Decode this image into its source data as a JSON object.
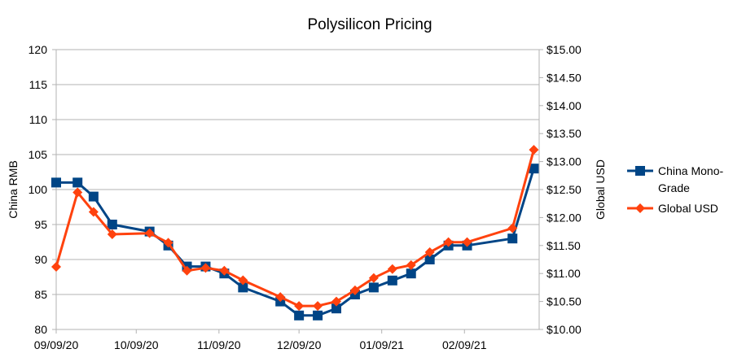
{
  "chart_data": {
    "type": "line",
    "title": "Polysilicon Pricing",
    "xlabel": "",
    "ylabel_left": "China RMB",
    "ylabel_right": "Global USD",
    "ylim_left": [
      80,
      120
    ],
    "ylim_right": [
      10.0,
      15.0
    ],
    "left_ticks": [
      "80",
      "85",
      "90",
      "95",
      "100",
      "105",
      "110",
      "115",
      "120"
    ],
    "right_ticks": [
      "$10.00",
      "$10.50",
      "$11.00",
      "$11.50",
      "$12.00",
      "$12.50",
      "$13.00",
      "$13.50",
      "$14.00",
      "$14.50",
      "$15.00"
    ],
    "x_tick_labels": [
      "09/09/20",
      "10/09/20",
      "11/09/20",
      "12/09/20",
      "01/09/21",
      "02/09/21"
    ],
    "x_tick_dates": [
      "2020-09-09",
      "2020-10-09",
      "2020-11-09",
      "2020-12-09",
      "2021-01-09",
      "2021-02-09"
    ],
    "x_range": [
      "2020-09-09",
      "2021-03-09"
    ],
    "gridlines": "horizontal",
    "series": [
      {
        "name": "China Mono-Grade",
        "legend_lines": [
          "China Mono-",
          "Grade"
        ],
        "axis": "left",
        "color": "#004586",
        "marker": "square",
        "x": [
          "2020-09-09",
          "2020-09-17",
          "2020-09-23",
          "2020-09-30",
          "2020-10-14",
          "2020-10-21",
          "2020-10-28",
          "2020-11-04",
          "2020-11-11",
          "2020-11-18",
          "2020-12-02",
          "2020-12-09",
          "2020-12-16",
          "2020-12-23",
          "2020-12-30",
          "2021-01-06",
          "2021-01-13",
          "2021-01-20",
          "2021-01-27",
          "2021-02-03",
          "2021-02-10",
          "2021-02-27",
          "2021-03-07"
        ],
        "values": [
          101,
          101,
          99,
          95,
          94,
          92,
          89,
          89,
          88,
          86,
          84,
          82,
          82,
          83,
          85,
          86,
          87,
          88,
          90,
          92,
          92,
          93,
          103
        ]
      },
      {
        "name": "Global USD",
        "legend_lines": [
          "Global USD"
        ],
        "axis": "right",
        "color": "#ff420e",
        "marker": "diamond",
        "x": [
          "2020-09-09",
          "2020-09-17",
          "2020-09-23",
          "2020-09-30",
          "2020-10-14",
          "2020-10-21",
          "2020-10-28",
          "2020-11-04",
          "2020-11-11",
          "2020-11-18",
          "2020-12-02",
          "2020-12-09",
          "2020-12-16",
          "2020-12-23",
          "2020-12-30",
          "2021-01-06",
          "2021-01-13",
          "2021-01-20",
          "2021-01-27",
          "2021-02-03",
          "2021-02-10",
          "2021-02-27",
          "2021-03-07"
        ],
        "values": [
          11.12,
          12.45,
          12.1,
          11.7,
          11.72,
          11.55,
          11.05,
          11.1,
          11.05,
          10.88,
          10.58,
          10.42,
          10.42,
          10.5,
          10.7,
          10.92,
          11.08,
          11.15,
          11.38,
          11.56,
          11.56,
          11.81,
          13.21
        ]
      }
    ]
  }
}
